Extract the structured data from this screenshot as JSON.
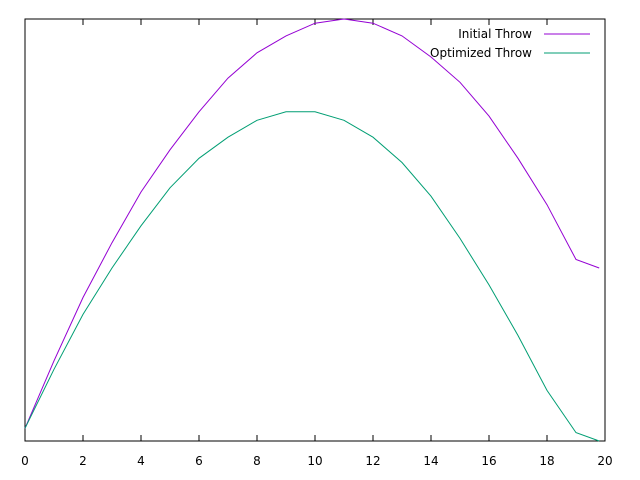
{
  "chart_data": {
    "type": "line",
    "title": "",
    "xlabel": "",
    "ylabel": "",
    "xlim": [
      0,
      20
    ],
    "ylim": [
      0,
      1
    ],
    "x_ticks": [
      "0",
      "2",
      "4",
      "6",
      "8",
      "10",
      "12",
      "14",
      "16",
      "18",
      "20"
    ],
    "y_ticks": [],
    "grid": false,
    "legend_position": "top-right",
    "x": [
      0,
      1,
      2,
      3,
      4,
      5,
      6,
      7,
      8,
      9,
      10,
      11,
      12,
      13,
      14,
      15,
      16,
      17,
      18,
      19,
      19.8
    ],
    "series": [
      {
        "name": "Initial Throw",
        "color": "#9400d3",
        "values": [
          0.03,
          0.19,
          0.34,
          0.47,
          0.59,
          0.69,
          0.78,
          0.86,
          0.92,
          0.96,
          0.99,
          1.0,
          0.99,
          0.96,
          0.91,
          0.85,
          0.77,
          0.67,
          0.56,
          0.43,
          0.41
        ]
      },
      {
        "name": "Optimized Throw",
        "color": "#009e73",
        "values": [
          0.03,
          0.17,
          0.3,
          0.41,
          0.51,
          0.6,
          0.67,
          0.72,
          0.76,
          0.78,
          0.78,
          0.76,
          0.72,
          0.66,
          0.58,
          0.48,
          0.37,
          0.25,
          0.12,
          0.02,
          0.0
        ]
      }
    ]
  }
}
